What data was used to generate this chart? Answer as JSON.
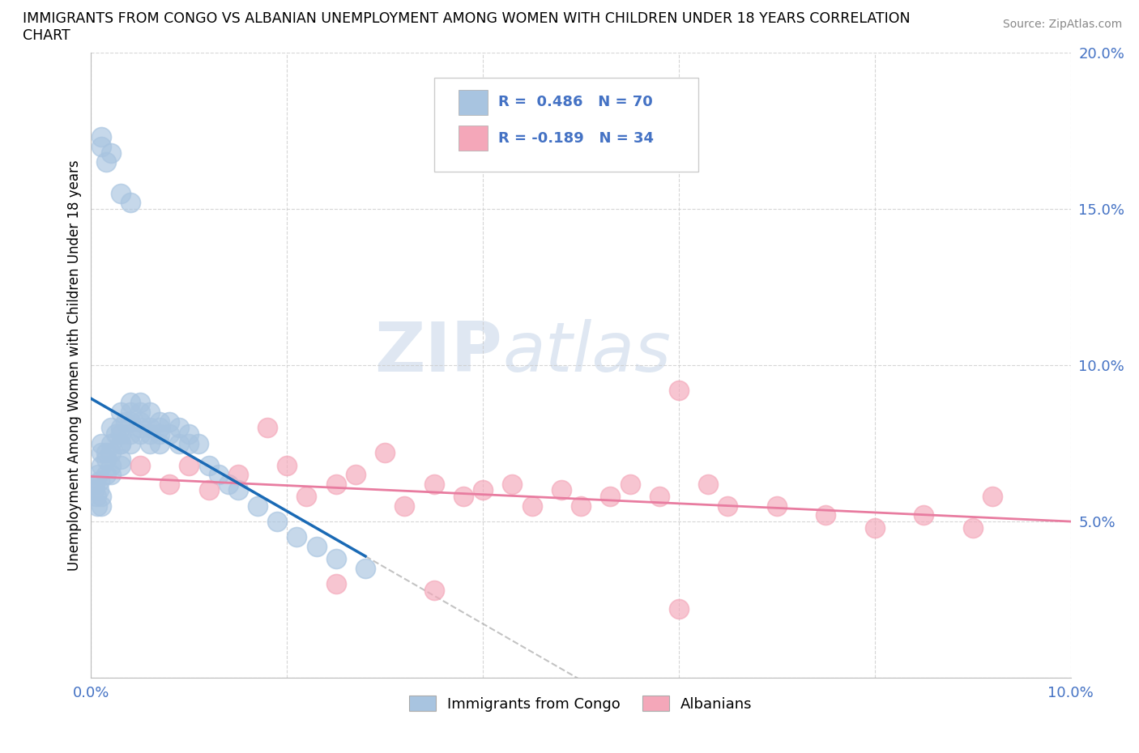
{
  "title_line1": "IMMIGRANTS FROM CONGO VS ALBANIAN UNEMPLOYMENT AMONG WOMEN WITH CHILDREN UNDER 18 YEARS CORRELATION",
  "title_line2": "CHART",
  "source": "Source: ZipAtlas.com",
  "ylabel": "Unemployment Among Women with Children Under 18 years",
  "xlim": [
    0.0,
    0.1
  ],
  "ylim": [
    0.0,
    0.2
  ],
  "congo_R": 0.486,
  "congo_N": 70,
  "albanian_R": -0.189,
  "albanian_N": 34,
  "congo_color": "#a8c4e0",
  "albanian_color": "#f4a7b9",
  "congo_line_color": "#1a6ab5",
  "albanian_line_color": "#e87ca0",
  "tick_color": "#4472c4",
  "legend_label_1": "Immigrants from Congo",
  "legend_label_2": "Albanians",
  "congo_x": [
    0.0003,
    0.0004,
    0.0005,
    0.0006,
    0.0007,
    0.0008,
    0.0009,
    0.001,
    0.001,
    0.001,
    0.001,
    0.001,
    0.0015,
    0.0015,
    0.0015,
    0.002,
    0.002,
    0.002,
    0.002,
    0.002,
    0.0025,
    0.003,
    0.003,
    0.003,
    0.003,
    0.003,
    0.003,
    0.003,
    0.0035,
    0.004,
    0.004,
    0.004,
    0.004,
    0.004,
    0.005,
    0.005,
    0.005,
    0.005,
    0.005,
    0.006,
    0.006,
    0.006,
    0.006,
    0.007,
    0.007,
    0.007,
    0.007,
    0.008,
    0.008,
    0.009,
    0.009,
    0.01,
    0.01,
    0.011,
    0.012,
    0.013,
    0.014,
    0.015,
    0.017,
    0.019,
    0.021,
    0.023,
    0.025,
    0.028,
    0.001,
    0.002,
    0.001,
    0.0015,
    0.003,
    0.004
  ],
  "congo_y": [
    0.06,
    0.062,
    0.058,
    0.055,
    0.065,
    0.06,
    0.063,
    0.068,
    0.072,
    0.075,
    0.058,
    0.055,
    0.07,
    0.065,
    0.072,
    0.068,
    0.075,
    0.08,
    0.072,
    0.065,
    0.078,
    0.075,
    0.08,
    0.085,
    0.07,
    0.068,
    0.075,
    0.078,
    0.082,
    0.078,
    0.082,
    0.085,
    0.088,
    0.075,
    0.08,
    0.082,
    0.085,
    0.088,
    0.078,
    0.08,
    0.085,
    0.075,
    0.078,
    0.075,
    0.078,
    0.082,
    0.08,
    0.078,
    0.082,
    0.075,
    0.08,
    0.075,
    0.078,
    0.075,
    0.068,
    0.065,
    0.062,
    0.06,
    0.055,
    0.05,
    0.045,
    0.042,
    0.038,
    0.035,
    0.17,
    0.168,
    0.173,
    0.165,
    0.155,
    0.152
  ],
  "albanian_x": [
    0.005,
    0.008,
    0.01,
    0.012,
    0.015,
    0.018,
    0.02,
    0.022,
    0.025,
    0.027,
    0.03,
    0.032,
    0.035,
    0.038,
    0.04,
    0.043,
    0.045,
    0.048,
    0.05,
    0.053,
    0.055,
    0.058,
    0.06,
    0.063,
    0.065,
    0.07,
    0.075,
    0.08,
    0.085,
    0.09,
    0.025,
    0.035,
    0.06,
    0.092
  ],
  "albanian_y": [
    0.068,
    0.062,
    0.068,
    0.06,
    0.065,
    0.08,
    0.068,
    0.058,
    0.062,
    0.065,
    0.072,
    0.055,
    0.062,
    0.058,
    0.06,
    0.062,
    0.055,
    0.06,
    0.055,
    0.058,
    0.062,
    0.058,
    0.092,
    0.062,
    0.055,
    0.055,
    0.052,
    0.048,
    0.052,
    0.048,
    0.03,
    0.028,
    0.022,
    0.058
  ]
}
